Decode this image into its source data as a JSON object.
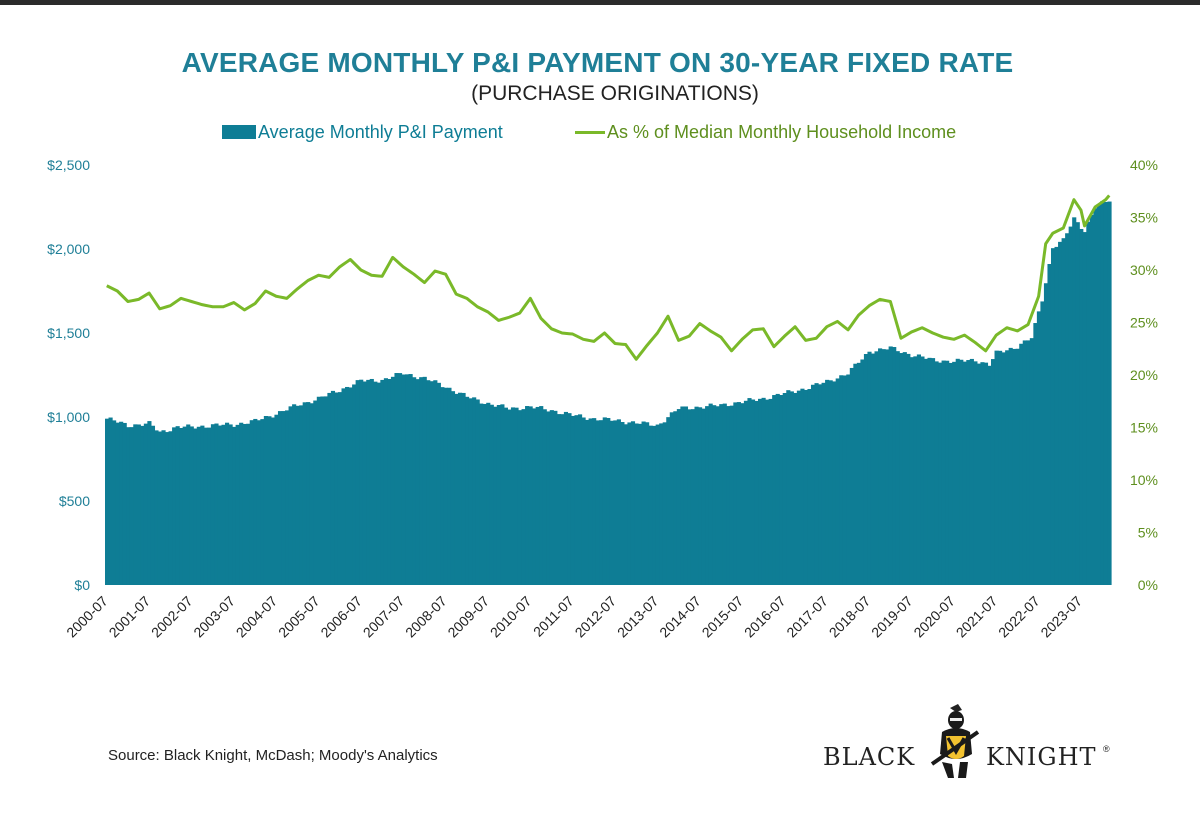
{
  "header": {
    "title": "AVERAGE MONTHLY P&I PAYMENT ON 30-YEAR FIXED RATE",
    "subtitle": "(PURCHASE ORIGINATIONS)"
  },
  "legend": {
    "bar_label": "Average Monthly P&I Payment",
    "line_label": "As % of Median Monthly Household Income"
  },
  "footer": {
    "source": "Source: Black Knight, McDash; Moody's Analytics",
    "logo_left": "BLACK",
    "logo_right": "KNIGHT",
    "logo_mark": "®"
  },
  "colors": {
    "bars": "#0e7d95",
    "line": "#7ab929",
    "title": "#1f7f97",
    "right_axis_text": "#5e8f1e"
  },
  "chart_data": {
    "type": "bar+line",
    "title": "AVERAGE MONTHLY P&I PAYMENT ON 30-YEAR FIXED RATE",
    "subtitle": "(PURCHASE ORIGINATIONS)",
    "x_tick_labels": [
      "2000-07",
      "2001-07",
      "2002-07",
      "2003-07",
      "2004-07",
      "2005-07",
      "2006-07",
      "2007-07",
      "2008-07",
      "2009-07",
      "2010-07",
      "2011-07",
      "2012-07",
      "2013-07",
      "2014-07",
      "2015-07",
      "2016-07",
      "2017-07",
      "2018-07",
      "2019-07",
      "2020-07",
      "2021-07",
      "2022-07",
      "2023-07"
    ],
    "left_axis": {
      "min": 0,
      "max": 2500,
      "ticks": [
        "$0",
        "$500",
        "$1,000",
        "$1,500",
        "$2,000",
        "$2,500"
      ]
    },
    "right_axis": {
      "min": 0,
      "max": 40,
      "ticks": [
        "0%",
        "5%",
        "10%",
        "15%",
        "20%",
        "25%",
        "30%",
        "35%",
        "40%"
      ]
    },
    "series": [
      {
        "name": "Average Monthly P&I Payment",
        "type": "bar",
        "axis": "left",
        "anchors_month_value": [
          [
            0,
            990
          ],
          [
            6,
            950
          ],
          [
            12,
            960
          ],
          [
            15,
            910
          ],
          [
            20,
            940
          ],
          [
            24,
            940
          ],
          [
            30,
            950
          ],
          [
            36,
            955
          ],
          [
            42,
            975
          ],
          [
            48,
            1020
          ],
          [
            54,
            1070
          ],
          [
            60,
            1110
          ],
          [
            66,
            1160
          ],
          [
            72,
            1215
          ],
          [
            78,
            1220
          ],
          [
            84,
            1260
          ],
          [
            90,
            1230
          ],
          [
            96,
            1180
          ],
          [
            102,
            1120
          ],
          [
            108,
            1080
          ],
          [
            114,
            1050
          ],
          [
            120,
            1060
          ],
          [
            126,
            1040
          ],
          [
            132,
            1010
          ],
          [
            138,
            990
          ],
          [
            144,
            980
          ],
          [
            150,
            965
          ],
          [
            156,
            950
          ],
          [
            162,
            1050
          ],
          [
            168,
            1060
          ],
          [
            174,
            1070
          ],
          [
            180,
            1090
          ],
          [
            186,
            1110
          ],
          [
            192,
            1140
          ],
          [
            198,
            1170
          ],
          [
            204,
            1210
          ],
          [
            210,
            1260
          ],
          [
            216,
            1390
          ],
          [
            222,
            1410
          ],
          [
            228,
            1370
          ],
          [
            234,
            1340
          ],
          [
            240,
            1330
          ],
          [
            246,
            1340
          ],
          [
            250,
            1310
          ],
          [
            252,
            1380
          ],
          [
            258,
            1420
          ],
          [
            262,
            1470
          ],
          [
            265,
            1700
          ],
          [
            268,
            2010
          ],
          [
            271,
            2050
          ],
          [
            274,
            2180
          ],
          [
            277,
            2110
          ],
          [
            280,
            2250
          ],
          [
            284,
            2290
          ]
        ]
      },
      {
        "name": "As % of Median Monthly Household Income",
        "type": "line",
        "axis": "right",
        "anchors_month_value": [
          [
            0,
            28.5
          ],
          [
            3,
            28.0
          ],
          [
            6,
            27.0
          ],
          [
            9,
            27.2
          ],
          [
            12,
            27.8
          ],
          [
            15,
            26.3
          ],
          [
            18,
            26.6
          ],
          [
            21,
            27.3
          ],
          [
            24,
            27.0
          ],
          [
            27,
            26.7
          ],
          [
            30,
            26.5
          ],
          [
            33,
            26.5
          ],
          [
            36,
            26.9
          ],
          [
            39,
            26.2
          ],
          [
            42,
            26.8
          ],
          [
            45,
            28.0
          ],
          [
            48,
            27.5
          ],
          [
            51,
            27.3
          ],
          [
            54,
            28.2
          ],
          [
            57,
            29.0
          ],
          [
            60,
            29.5
          ],
          [
            63,
            29.3
          ],
          [
            66,
            30.3
          ],
          [
            69,
            31.0
          ],
          [
            72,
            30.0
          ],
          [
            75,
            29.5
          ],
          [
            78,
            29.4
          ],
          [
            81,
            31.2
          ],
          [
            84,
            30.3
          ],
          [
            87,
            29.6
          ],
          [
            90,
            28.8
          ],
          [
            93,
            29.9
          ],
          [
            96,
            29.6
          ],
          [
            99,
            27.7
          ],
          [
            102,
            27.3
          ],
          [
            105,
            26.5
          ],
          [
            108,
            26.0
          ],
          [
            111,
            25.2
          ],
          [
            114,
            25.5
          ],
          [
            117,
            25.9
          ],
          [
            120,
            27.3
          ],
          [
            123,
            25.4
          ],
          [
            126,
            24.4
          ],
          [
            129,
            24.0
          ],
          [
            132,
            23.9
          ],
          [
            135,
            23.4
          ],
          [
            138,
            23.2
          ],
          [
            141,
            24.0
          ],
          [
            144,
            23.0
          ],
          [
            147,
            22.9
          ],
          [
            150,
            21.5
          ],
          [
            153,
            22.8
          ],
          [
            156,
            24.0
          ],
          [
            159,
            25.6
          ],
          [
            162,
            23.3
          ],
          [
            165,
            23.7
          ],
          [
            168,
            24.9
          ],
          [
            171,
            24.2
          ],
          [
            174,
            23.6
          ],
          [
            177,
            22.3
          ],
          [
            180,
            23.4
          ],
          [
            183,
            24.3
          ],
          [
            186,
            24.4
          ],
          [
            189,
            22.7
          ],
          [
            192,
            23.7
          ],
          [
            195,
            24.6
          ],
          [
            198,
            23.3
          ],
          [
            201,
            23.5
          ],
          [
            204,
            24.6
          ],
          [
            207,
            25.1
          ],
          [
            210,
            24.3
          ],
          [
            213,
            25.7
          ],
          [
            216,
            26.6
          ],
          [
            219,
            27.2
          ],
          [
            222,
            27.0
          ],
          [
            225,
            23.5
          ],
          [
            228,
            24.1
          ],
          [
            231,
            24.5
          ],
          [
            234,
            24.0
          ],
          [
            237,
            23.6
          ],
          [
            240,
            23.4
          ],
          [
            243,
            23.8
          ],
          [
            246,
            23.1
          ],
          [
            249,
            22.3
          ],
          [
            252,
            23.8
          ],
          [
            255,
            24.5
          ],
          [
            258,
            24.2
          ],
          [
            261,
            24.8
          ],
          [
            264,
            27.5
          ],
          [
            266,
            32.5
          ],
          [
            268,
            33.5
          ],
          [
            271,
            34.0
          ],
          [
            274,
            36.7
          ],
          [
            276,
            35.7
          ],
          [
            277,
            34.2
          ],
          [
            280,
            36.0
          ],
          [
            283,
            36.7
          ],
          [
            284,
            37.1
          ]
        ]
      }
    ]
  }
}
